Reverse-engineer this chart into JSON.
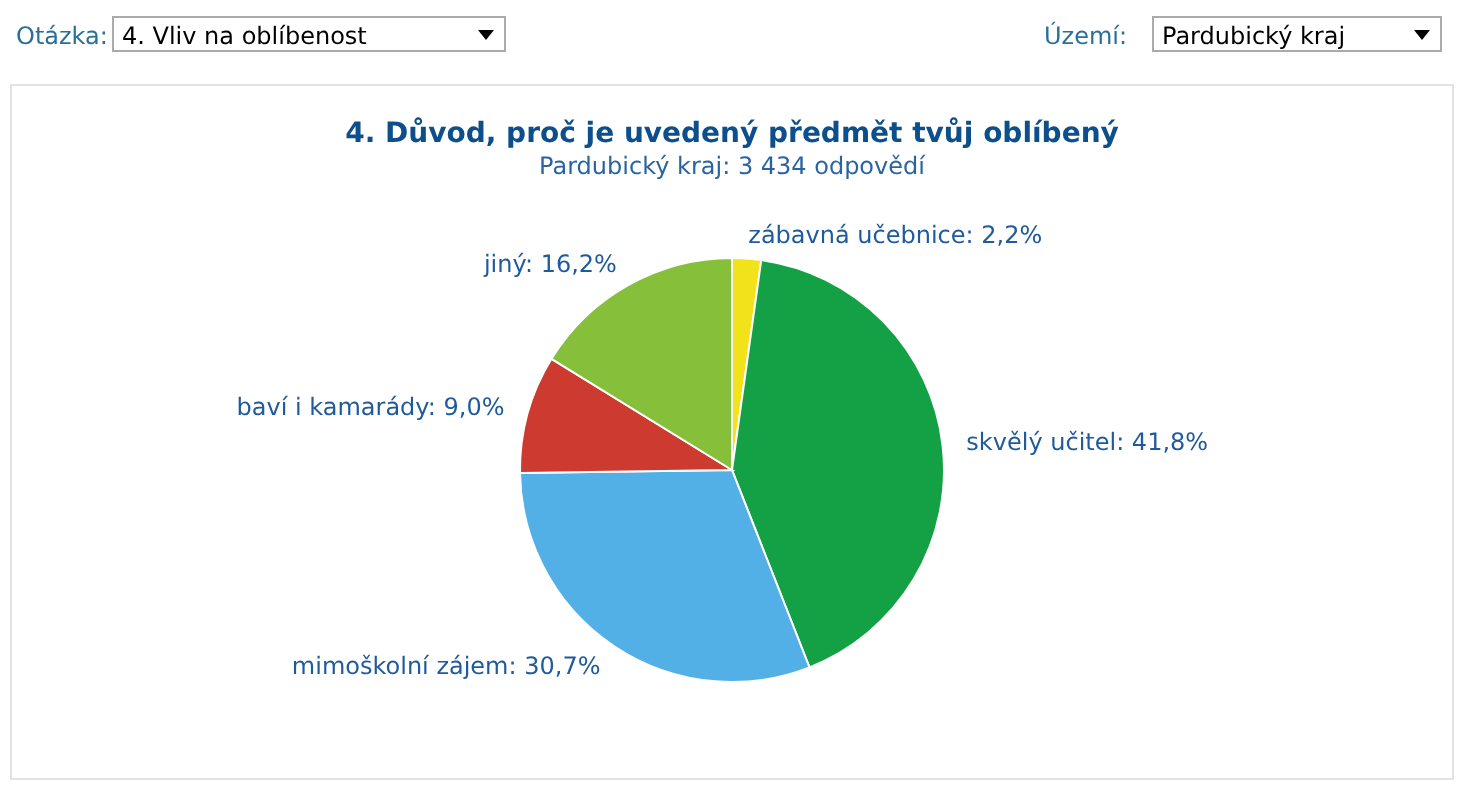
{
  "chart_data": {
    "type": "pie",
    "title": "4. Důvod, proč je uvedený předmět tvůj oblíbený",
    "subtitle": "Pardubický kraj: 3 434 odpovědí",
    "categories": [
      "zábavná učebnice",
      "skvělý učitel",
      "mimoškolní zájem",
      "baví i kamarády",
      "jiný"
    ],
    "values": [
      2.2,
      41.8,
      30.7,
      9.0,
      16.2
    ],
    "value_labels": [
      "2,2%",
      "41,8%",
      "30,7%",
      "9,0%",
      "16,2%"
    ],
    "colors": [
      "#f2e21a",
      "#14a044",
      "#52b0e6",
      "#cc3a30",
      "#86bf3a"
    ],
    "legend": false,
    "annotations": [
      "Otázka:",
      "4. Vliv na oblíbenost",
      "Území:",
      "Pardubický kraj"
    ]
  }
}
